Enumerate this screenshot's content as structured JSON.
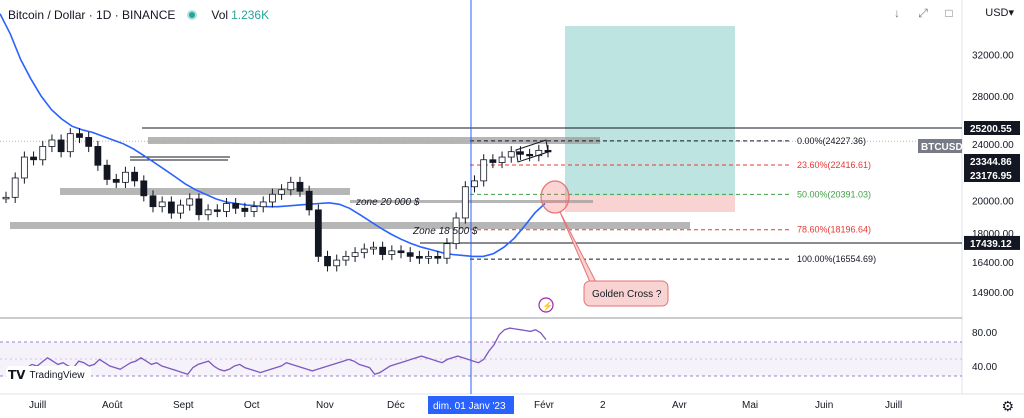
{
  "header": {
    "symbol": "Bitcoin / Dollar · 1D · BINANCE",
    "vol_label": "Vol",
    "vol_value": "1.236K"
  },
  "toolbar": {
    "down_arrow": "↓",
    "maximize": "⤢",
    "square": "□",
    "currency": "USD▾"
  },
  "price_axis": {
    "ticks": [
      "32000.00",
      "28000.00",
      "24000.00",
      "20000.00",
      "18000.00",
      "16400.00",
      "14900.00"
    ],
    "labels": [
      {
        "text": "25200.55",
        "price": 25200.55,
        "style": "dark"
      },
      {
        "text": "BTCUSD",
        "price": 24000,
        "style": "grey"
      },
      {
        "text": "23344.86",
        "price": 23344.86,
        "style": "dark"
      },
      {
        "text": "23176.95",
        "price": 23176.95,
        "style": "dark"
      },
      {
        "text": "17439.12",
        "price": 17439.12,
        "style": "dark"
      }
    ]
  },
  "time_axis": {
    "labels": [
      "Juill",
      "Août",
      "Sept",
      "Oct",
      "Nov",
      "Déc",
      "Févr",
      "2",
      "Avr",
      "Mai",
      "Juin",
      "Juill"
    ],
    "crosshair_label": "dim. 01 Janv '23"
  },
  "fibonacci": [
    {
      "text": "0.00%(24227.36)",
      "price": 24227.36,
      "color": "#131722"
    },
    {
      "text": "23.60%(22416.61)",
      "price": 22416.61,
      "color": "#e53935"
    },
    {
      "text": "50.00%(20391.03)",
      "price": 20391.03,
      "color": "#43a047"
    },
    {
      "text": "78.60%(18196.64)",
      "price": 18196.64,
      "color": "#e53935"
    },
    {
      "text": "100.00%(16554.69)",
      "price": 16554.69,
      "color": "#131722"
    }
  ],
  "annotations": {
    "zone20": "zone 20 000 $",
    "zone18": "Zone 18 500 $",
    "golden_cross": "Golden Cross ?"
  },
  "rsi": {
    "ticks": [
      "80.00",
      "40.00"
    ],
    "color": "#7e57c2",
    "values": [
      28,
      22,
      20,
      25,
      38,
      42,
      40,
      45,
      50,
      46,
      42,
      44,
      40,
      38,
      46,
      44,
      40,
      42,
      48,
      44,
      40,
      38,
      36,
      40,
      44,
      46,
      50,
      46,
      42,
      44,
      40,
      38,
      36,
      34,
      32,
      30,
      38,
      42,
      44,
      46,
      40,
      36,
      34,
      36,
      40,
      42,
      38,
      36,
      34,
      32,
      34,
      36,
      38,
      40,
      44,
      42,
      40,
      38,
      36,
      34,
      36,
      38,
      40,
      42,
      44,
      46,
      48,
      46,
      42,
      40,
      38,
      30,
      32,
      36,
      40,
      42,
      44,
      46,
      48,
      50,
      52,
      50,
      48,
      46,
      44,
      48,
      50,
      52,
      50,
      48,
      46,
      44,
      48,
      58,
      66,
      78,
      84,
      86,
      85,
      84,
      83,
      82,
      84,
      80,
      72
    ]
  },
  "colors": {
    "up": "#26a69a",
    "down": "#ef5350",
    "candle": "#131722",
    "ma_blue": "#2962ff",
    "crosshair": "#2962ff",
    "tp_zone": "#b2dfdb",
    "sl_zone": "#f8d3d2"
  },
  "chart_data": {
    "type": "candlestick",
    "title": "Bitcoin / Dollar · 1D · BINANCE",
    "xlabel": "",
    "ylabel": "USD",
    "ylim": [
      13800,
      35000
    ],
    "x_range": [
      "2022-07",
      "2023-07"
    ],
    "log_scale": true,
    "close_series": [
      20200,
      21500,
      23000,
      22800,
      23800,
      24300,
      23400,
      24800,
      24500,
      23800,
      22400,
      21400,
      21200,
      21900,
      21300,
      20300,
      19600,
      19900,
      19200,
      19700,
      20100,
      19100,
      19400,
      19300,
      19800,
      19500,
      19300,
      19600,
      19900,
      20400,
      20700,
      21200,
      20600,
      19400,
      16700,
      16200,
      16500,
      16700,
      16900,
      17100,
      17200,
      16800,
      17000,
      16900,
      16700,
      16600,
      16700,
      16600,
      17400,
      18900,
      20900,
      21300,
      22800,
      22600,
      23000,
      23400,
      23200,
      23100,
      23500,
      23400
    ],
    "moving_average": [
      36500,
      34200,
      31500,
      29600,
      28000,
      26800,
      26000,
      25400,
      25100,
      24900,
      24600,
      24300,
      24000,
      23600,
      23100,
      22600,
      22100,
      21600,
      21100,
      20700,
      20400,
      20100,
      19900,
      19800,
      19700,
      19650,
      19600,
      19600,
      19650,
      19700,
      19750,
      19800,
      19850,
      19750,
      19500,
      19100,
      18700,
      18300,
      17950,
      17650,
      17400,
      17200,
      17050,
      16900,
      16800,
      16750,
      16700,
      16700,
      16850,
      17200,
      17700,
      18400,
      19200,
      19800
    ],
    "horizontal_levels": [
      25200.55,
      17439.12
    ],
    "fibonacci_levels": [
      24227.36,
      22416.61,
      20391.03,
      18196.64,
      16554.69
    ],
    "crosshair_date": "dim. 01 Janv '23"
  }
}
